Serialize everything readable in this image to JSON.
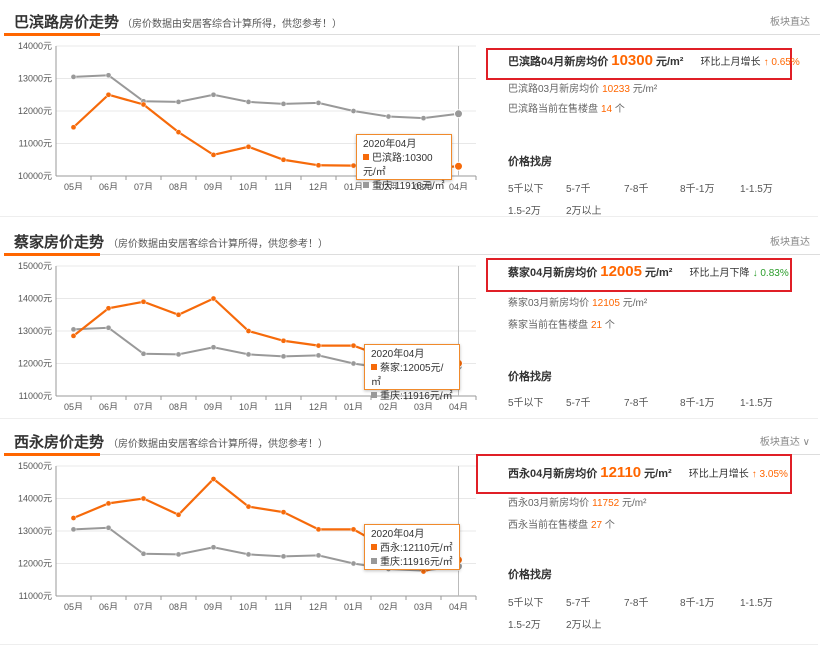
{
  "months": [
    "05月",
    "06月",
    "07月",
    "08月",
    "09月",
    "10月",
    "11月",
    "12月",
    "01月",
    "02月",
    "03月",
    "04月"
  ],
  "colors": {
    "accent": "#f66a0a",
    "compare": "#999999",
    "highlight": "#e01f26"
  },
  "panels": [
    {
      "title": "巴滨路房价走势",
      "note": "（房价数据由安居客综合计算所得，供您参考！）",
      "collapse_label": "板块直达",
      "avg_label": "巴滨路04月新房均价",
      "avg_value": "10300",
      "unit": "元/m²",
      "trend_label": "环比上月增长",
      "trend_arrow": "↑",
      "trend_value": "0.65%",
      "trend_dir": "up",
      "prev_label": "巴滨路03月新房均价",
      "prev_value": "10233",
      "prev_unit": "元/m²",
      "sale_label": "巴滨路当前在售楼盘",
      "sale_count": "14",
      "sale_unit": "个",
      "price_title": "价格找房",
      "price_options": [
        "5千以下",
        "5-7千",
        "7-8千",
        "8千-1万",
        "1-1.5万",
        "1.5-2万",
        "2万以上"
      ],
      "tooltip": {
        "date": "2020年04月",
        "primary": "巴滨路:10300元/㎡",
        "compare": "重庆:11916元/㎡"
      },
      "chart_data": {
        "type": "line",
        "x": [
          "05月",
          "06月",
          "07月",
          "08月",
          "09月",
          "10月",
          "11月",
          "12月",
          "01月",
          "02月",
          "03月",
          "04月"
        ],
        "ylim": [
          10000,
          14000
        ],
        "yticks": [
          "10000元",
          "11000元",
          "12000元",
          "13000元",
          "14000元"
        ],
        "series": [
          {
            "name": "巴滨路",
            "values": [
              11500,
              12500,
              12200,
              11350,
              10650,
              10900,
              10500,
              10330,
              10320,
              10320,
              10233,
              10300
            ]
          },
          {
            "name": "重庆",
            "values": [
              13050,
              13100,
              12300,
              12280,
              12500,
              12280,
              12220,
              12250,
              12000,
              11830,
              11780,
              11916
            ]
          }
        ]
      }
    },
    {
      "title": "蔡家房价走势",
      "note": "（房价数据由安居客综合计算所得，供您参考！）",
      "collapse_label": "板块直达",
      "avg_label": "蔡家04月新房均价",
      "avg_value": "12005",
      "unit": "元/m²",
      "trend_label": "环比上月下降",
      "trend_arrow": "↓",
      "trend_value": "0.83%",
      "trend_dir": "down",
      "prev_label": "蔡家03月新房均价",
      "prev_value": "12105",
      "prev_unit": "元/m²",
      "sale_label": "蔡家当前在售楼盘",
      "sale_count": "21",
      "sale_unit": "个",
      "price_title": "价格找房",
      "price_options": [
        "5千以下",
        "5-7千",
        "7-8千",
        "8千-1万",
        "1-1.5万"
      ],
      "tooltip": {
        "date": "2020年04月",
        "primary": "蔡家:12005元/㎡",
        "compare": "重庆:11916元/㎡"
      },
      "chart_data": {
        "type": "line",
        "x": [
          "05月",
          "06月",
          "07月",
          "08月",
          "09月",
          "10月",
          "11月",
          "12月",
          "01月",
          "02月",
          "03月",
          "04月"
        ],
        "ylim": [
          11000,
          15000
        ],
        "yticks": [
          "11000元",
          "12000元",
          "13000元",
          "14000元",
          "15000元"
        ],
        "series": [
          {
            "name": "蔡家",
            "values": [
              12850,
              13700,
              13900,
              13500,
              14000,
              13000,
              12700,
              12550,
              12550,
              12150,
              12105,
              12005
            ]
          },
          {
            "name": "重庆",
            "values": [
              13050,
              13100,
              12300,
              12280,
              12500,
              12280,
              12220,
              12250,
              12000,
              11830,
              11780,
              11916
            ]
          }
        ]
      }
    },
    {
      "title": "西永房价走势",
      "note": "（房价数据由安居客综合计算所得，供您参考！）",
      "collapse_label": "板块直达 ∨",
      "avg_label": "西永04月新房均价",
      "avg_value": "12110",
      "unit": "元/m²",
      "trend_label": "环比上月增长",
      "trend_arrow": "↑",
      "trend_value": "3.05%",
      "trend_dir": "up",
      "prev_label": "西永03月新房均价",
      "prev_value": "11752",
      "prev_unit": "元/m²",
      "sale_label": "西永当前在售楼盘",
      "sale_count": "27",
      "sale_unit": "个",
      "price_title": "价格找房",
      "price_options": [
        "5千以下",
        "5-7千",
        "7-8千",
        "8千-1万",
        "1-1.5万",
        "1.5-2万",
        "2万以上"
      ],
      "tooltip": {
        "date": "2020年04月",
        "primary": "西永:12110元/㎡",
        "compare": "重庆:11916元/㎡"
      },
      "chart_data": {
        "type": "line",
        "x": [
          "05月",
          "06月",
          "07月",
          "08月",
          "09月",
          "10月",
          "11月",
          "12月",
          "01月",
          "02月",
          "03月",
          "04月"
        ],
        "ylim": [
          11000,
          15000
        ],
        "yticks": [
          "11000元",
          "12000元",
          "13000元",
          "14000元",
          "15000元"
        ],
        "series": [
          {
            "name": "西永",
            "values": [
              13400,
              13850,
              14000,
              13500,
              14600,
              13750,
              13580,
              13050,
              13050,
              12450,
              11752,
              12110
            ]
          },
          {
            "name": "重庆",
            "values": [
              13050,
              13100,
              12300,
              12280,
              12500,
              12280,
              12220,
              12250,
              12000,
              11830,
              11780,
              11916
            ]
          }
        ]
      }
    }
  ]
}
